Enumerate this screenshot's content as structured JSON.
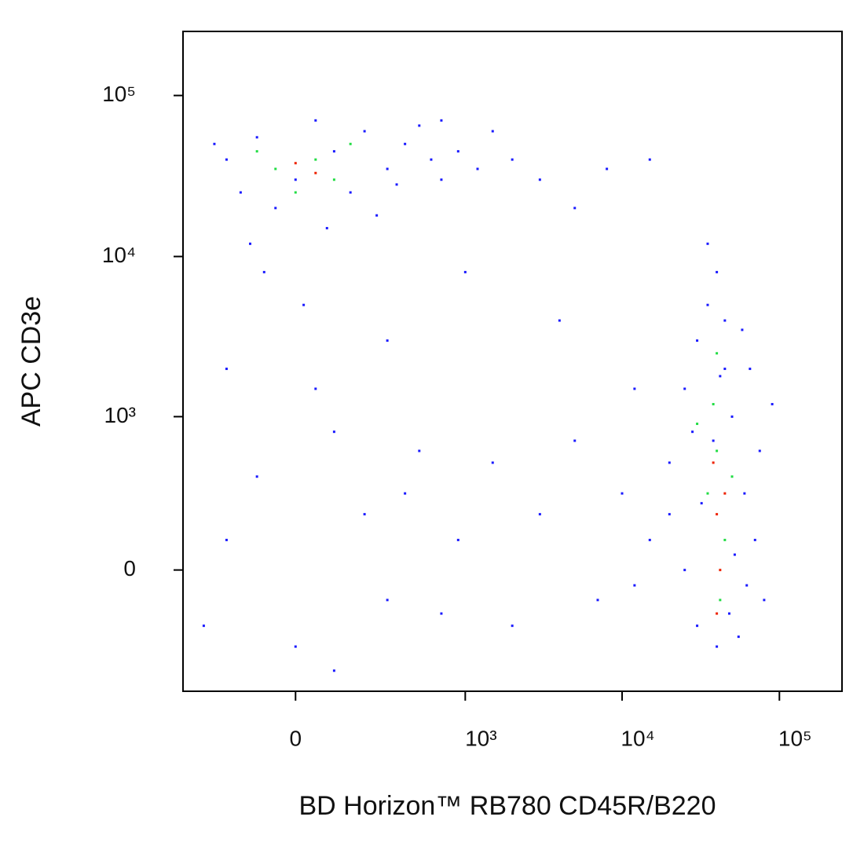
{
  "chart_data": {
    "type": "scatter",
    "x_label": "BD Horizon™ RB780 CD45R/B220",
    "y_label": "APC CD3e",
    "xscale": "biexponential",
    "yscale": "biexponential",
    "xlim": [
      -420,
      250000
    ],
    "ylim": [
      -620,
      250000
    ],
    "xticks": [
      0,
      {
        "value": 1000,
        "label": "10³"
      },
      {
        "value": 10000,
        "label": "10⁴"
      },
      {
        "value": 100000,
        "label": "10⁵"
      }
    ],
    "yticks": [
      0,
      {
        "value": 1000,
        "label": "10³"
      },
      {
        "value": 10000,
        "label": "10⁴"
      },
      {
        "value": 100000,
        "label": "10⁵"
      }
    ],
    "series": [
      {
        "color": "#1a1aff",
        "x": [
          -200,
          -100,
          0,
          100,
          200,
          -150,
          50,
          300,
          -50,
          150,
          400,
          500,
          600,
          250,
          -250,
          80,
          -120,
          350,
          700,
          900,
          1200,
          2000,
          3000,
          5000,
          8000,
          15000,
          1500,
          700,
          -80,
          20,
          20000,
          25000,
          30000,
          35000,
          40000,
          45000,
          50000,
          60000,
          70000,
          80000,
          30000,
          25000,
          20000,
          15000,
          12000,
          40000,
          55000,
          65000,
          75000,
          90000,
          35000,
          45000,
          28000,
          32000,
          48000,
          52000,
          38000,
          42000,
          62000,
          58000,
          -300,
          -200,
          -100,
          0,
          100,
          200,
          300,
          400,
          500,
          700,
          900,
          1500,
          2000,
          3000,
          5000,
          7000,
          10000,
          -200,
          50,
          300,
          1000,
          4000,
          12000,
          100
        ],
        "y": [
          40000,
          55000,
          30000,
          45000,
          60000,
          25000,
          70000,
          35000,
          20000,
          25000,
          50000,
          65000,
          40000,
          18000,
          50000,
          15000,
          12000,
          28000,
          30000,
          45000,
          35000,
          40000,
          30000,
          20000,
          35000,
          40000,
          60000,
          70000,
          8000,
          5000,
          500,
          1500,
          3000,
          5000,
          8000,
          2000,
          1000,
          300,
          100,
          -100,
          -200,
          0,
          200,
          100,
          -50,
          -300,
          -250,
          2000,
          600,
          1200,
          12000,
          4000,
          800,
          250,
          -150,
          50,
          700,
          1800,
          -50,
          3500,
          -200,
          100,
          400,
          -300,
          800,
          200,
          -100,
          300,
          600,
          -150,
          100,
          500,
          -200,
          200,
          700,
          -100,
          300,
          2000,
          1500,
          3000,
          8000,
          4000,
          1500,
          -450
        ]
      },
      {
        "color": "#22dd44",
        "x": [
          -50,
          50,
          100,
          -100,
          150,
          0,
          35000,
          40000,
          45000,
          38000,
          42000,
          50000,
          30000,
          40000
        ],
        "y": [
          35000,
          40000,
          30000,
          45000,
          50000,
          25000,
          300,
          600,
          100,
          1200,
          -100,
          400,
          900,
          2500
        ]
      },
      {
        "color": "#ee2200",
        "x": [
          0,
          50,
          40000,
          42000,
          38000,
          45000,
          40000
        ],
        "y": [
          38000,
          33000,
          200,
          0,
          500,
          300,
          -150
        ]
      }
    ]
  }
}
